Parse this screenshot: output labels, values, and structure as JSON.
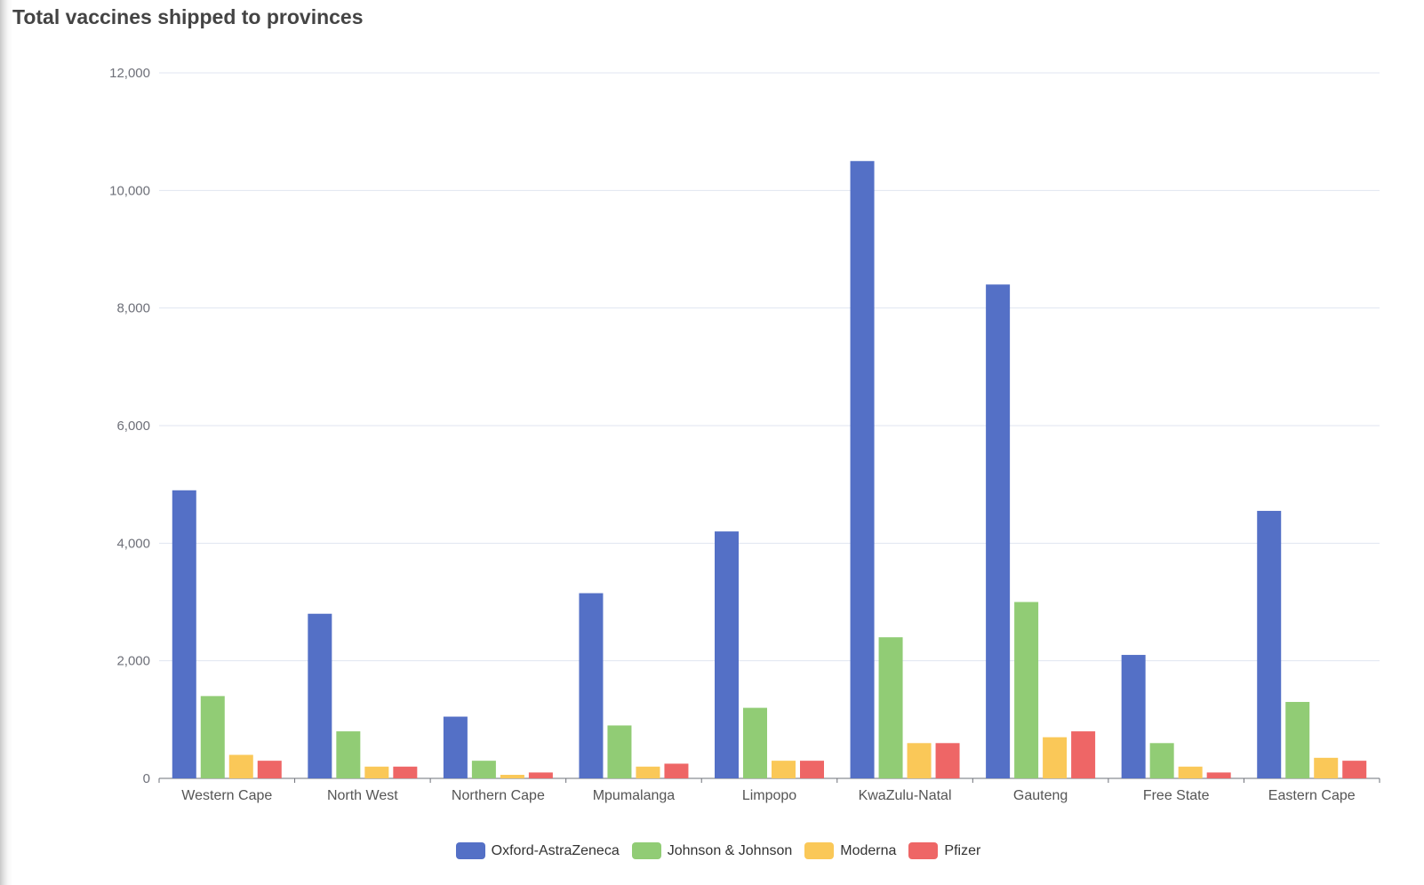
{
  "chart_data": {
    "type": "bar",
    "title": "Total vaccines shipped to provinces",
    "categories": [
      "Western Cape",
      "North West",
      "Northern Cape",
      "Mpumalanga",
      "Limpopo",
      "KwaZulu-Natal",
      "Gauteng",
      "Free State",
      "Eastern Cape"
    ],
    "series": [
      {
        "name": "Oxford-AstraZeneca",
        "color": "#5470c6",
        "values": [
          4900,
          2800,
          1050,
          3150,
          4200,
          10500,
          8400,
          2100,
          4550
        ]
      },
      {
        "name": "Johnson & Johnson",
        "color": "#91cc75",
        "values": [
          1400,
          800,
          300,
          900,
          1200,
          2400,
          3000,
          600,
          1300
        ]
      },
      {
        "name": "Moderna",
        "color": "#fac858",
        "values": [
          400,
          200,
          60,
          200,
          300,
          600,
          700,
          200,
          350
        ]
      },
      {
        "name": "Pfizer",
        "color": "#ee6666",
        "values": [
          300,
          200,
          100,
          250,
          300,
          600,
          800,
          100,
          300
        ]
      }
    ],
    "yticks": [
      "0",
      "2,000",
      "4,000",
      "6,000",
      "8,000",
      "10,000",
      "12,000"
    ],
    "ylim": [
      0,
      12000
    ],
    "xlabel": "",
    "ylabel": "",
    "grid": true,
    "legend_position": "bottom-center"
  }
}
